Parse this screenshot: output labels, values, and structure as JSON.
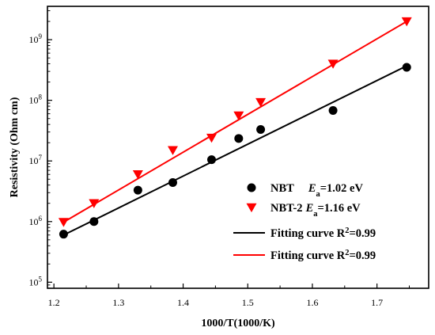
{
  "chart_data": {
    "type": "scatter",
    "x_scale": "linear",
    "y_scale": "log",
    "xlim": [
      1.19,
      1.78
    ],
    "ylim_exp": [
      4.9,
      9.55
    ],
    "xlabel": "1000/T(1000/K)",
    "ylabel": "Resistivity (Ohm cm)",
    "x_ticks": [
      "1.2",
      "1.3",
      "1.4",
      "1.5",
      "1.6",
      "1.7"
    ],
    "x_tick_values": [
      1.2,
      1.3,
      1.4,
      1.5,
      1.6,
      1.7
    ],
    "y_tick_exponents": [
      5,
      6,
      7,
      8,
      9
    ],
    "y_tick_base": "10",
    "legend_position": "lower-right",
    "series": [
      {
        "name": "NBT",
        "ea_symbol": "E",
        "ea_subscript": "a",
        "ea_value": "=1.02 eV",
        "marker": "circle",
        "color": "#000000",
        "x": [
          1.215,
          1.262,
          1.33,
          1.384,
          1.444,
          1.486,
          1.52,
          1.632,
          1.746
        ],
        "y": [
          620000.0,
          1000000.0,
          3300000.0,
          4400000.0,
          10500000.0,
          23500000.0,
          33000000.0,
          68000000.0,
          350000000.0
        ]
      },
      {
        "name": "NBT-2",
        "ea_symbol": "E",
        "ea_subscript": "a",
        "ea_value": "=1.16 eV",
        "marker": "triangle-down",
        "color": "#ff0000",
        "x": [
          1.215,
          1.262,
          1.33,
          1.384,
          1.444,
          1.486,
          1.52,
          1.632,
          1.746
        ],
        "y": [
          980000.0,
          2000000.0,
          6000000.0,
          15000000.0,
          24000000.0,
          56000000.0,
          93000000.0,
          400000000.0,
          2000000000.0
        ]
      }
    ],
    "fits": [
      {
        "label_prefix": "Fitting curve R",
        "label_sup": "2",
        "label_suffix": "=0.99",
        "color": "#000000",
        "x": [
          1.215,
          1.746
        ],
        "y": [
          600000.0,
          370000000.0
        ]
      },
      {
        "label_prefix": "Fitting curve R",
        "label_sup": "2",
        "label_suffix": "=0.99",
        "color": "#ff0000",
        "x": [
          1.215,
          1.746
        ],
        "y": [
          980000.0,
          2000000000.0
        ]
      }
    ]
  }
}
